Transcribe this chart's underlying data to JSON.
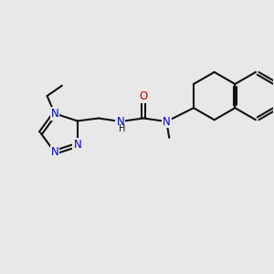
{
  "bg": "#e8e8e8",
  "bc": "#111111",
  "Nc": "#0000cc",
  "Oc": "#cc0000",
  "bw": 1.5,
  "fs": 8.5,
  "fss": 7.0,
  "xlim": [
    0,
    10
  ],
  "ylim": [
    0,
    10
  ]
}
